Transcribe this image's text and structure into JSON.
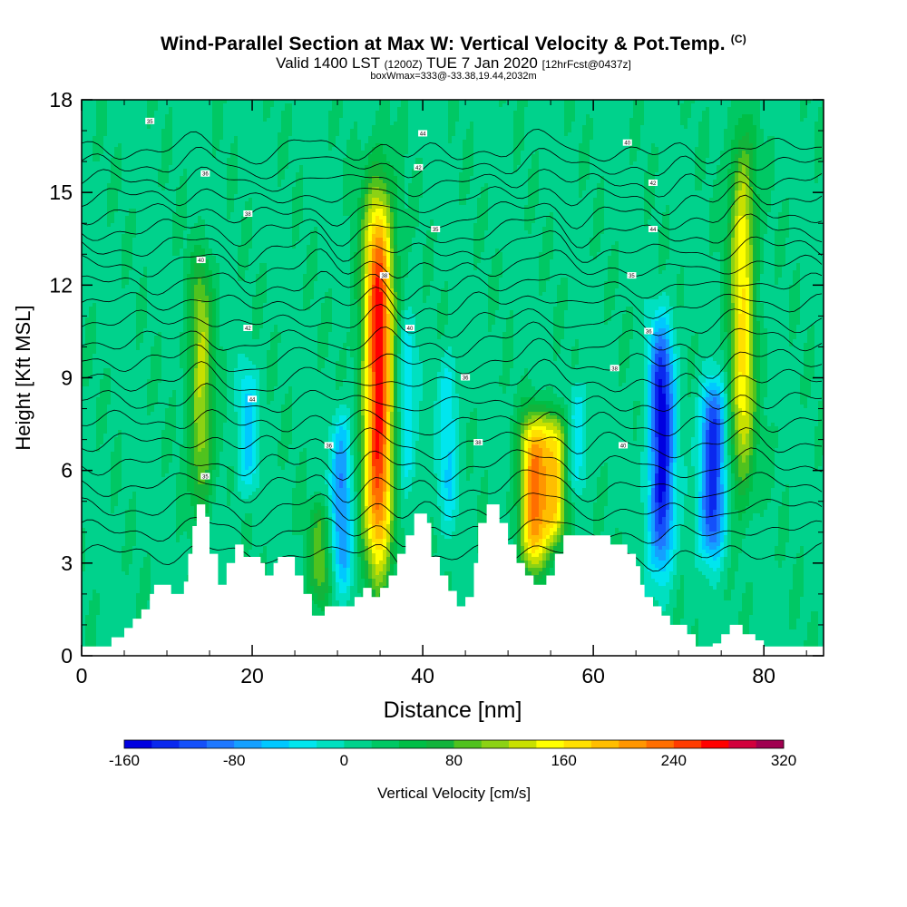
{
  "header": {
    "title": "Wind-Parallel Section at Max W: Vertical Velocity & Pot.Temp.",
    "copyright": "(C)",
    "valid_prefix": "Valid 1400 LST",
    "valid_utc": "(1200Z)",
    "valid_date": "TUE 7 Jan 2020",
    "forecast": "[12hrFcst@0437z]",
    "box_info": "boxWmax=333@-33.38,19.44,2032m"
  },
  "chart_data": {
    "type": "heatmap",
    "xlabel": "Distance [nm]",
    "ylabel": "Height [Kft MSL]",
    "xlim": [
      0,
      87
    ],
    "ylim": [
      0,
      18
    ],
    "x_ticks": [
      0,
      20,
      40,
      60,
      80
    ],
    "y_ticks": [
      0,
      3,
      6,
      9,
      12,
      15,
      18
    ],
    "colorbar": {
      "label": "Vertical Velocity [cm/s]",
      "min": -160,
      "max": 320,
      "tick_values": [
        -160,
        -80,
        0,
        80,
        160,
        240,
        320
      ],
      "colors": [
        "#0000e0",
        "#0a28ee",
        "#1450fa",
        "#1e78ff",
        "#14a0ff",
        "#00c8ff",
        "#00e6ee",
        "#00e0c0",
        "#00d28c",
        "#00c864",
        "#00be46",
        "#12b43c",
        "#50c21e",
        "#8cd214",
        "#c8e000",
        "#ffff00",
        "#ffe000",
        "#ffbe00",
        "#ff9600",
        "#ff6e00",
        "#ff3c00",
        "#ff0000",
        "#d2003c",
        "#a00050"
      ]
    },
    "background_velocity": 15,
    "updraft_bands": [
      {
        "x": 14,
        "y": [
          4.5,
          13
        ],
        "peak": 120
      },
      {
        "x": 19.5,
        "y": [
          5,
          9.5
        ],
        "peak": -45
      },
      {
        "x": 28,
        "y": [
          1.5,
          5
        ],
        "peak": 90
      },
      {
        "x": 30.5,
        "y": [
          2,
          8
        ],
        "peak": -80
      },
      {
        "x": 34.8,
        "y": [
          2.3,
          15.5
        ],
        "peak": 270
      },
      {
        "x": 38,
        "y": [
          5,
          11
        ],
        "peak": -45
      },
      {
        "x": 43,
        "y": [
          4,
          10
        ],
        "peak": -40
      },
      {
        "x": 53,
        "y": [
          2.5,
          8
        ],
        "peak": 210
      },
      {
        "x": 55.5,
        "y": [
          3.5,
          8
        ],
        "peak": 170
      },
      {
        "x": 58,
        "y": [
          5,
          9
        ],
        "peak": -40
      },
      {
        "x": 68,
        "y": [
          2.5,
          11
        ],
        "peak": -150
      },
      {
        "x": 74,
        "y": [
          3,
          9
        ],
        "peak": -140
      },
      {
        "x": 77.5,
        "y": [
          5,
          17
        ],
        "peak": 160
      }
    ],
    "isentrope_labels": [
      "35",
      "36",
      "38",
      "40",
      "42",
      "44"
    ]
  }
}
